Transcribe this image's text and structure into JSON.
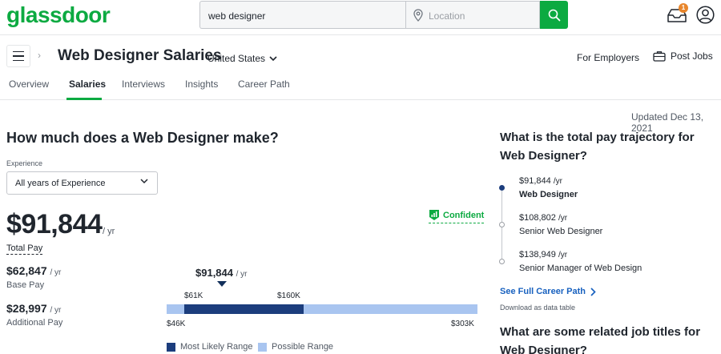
{
  "header": {
    "logo": "glassdoor",
    "search_value": "web designer",
    "location_placeholder": "Location",
    "notification_count": "1",
    "colors": {
      "brand": "#0caa41",
      "badge": "#e8862c"
    }
  },
  "subheader": {
    "title": "Web Designer Salaries",
    "country": "United States",
    "for_employers": "For Employers",
    "post_jobs": "Post Jobs"
  },
  "tabs": [
    {
      "label": "Overview"
    },
    {
      "label": "Salaries"
    },
    {
      "label": "Interviews"
    },
    {
      "label": "Insights"
    },
    {
      "label": "Career Path"
    }
  ],
  "active_tab": "Salaries",
  "updated": "Updated Dec 13, 2021",
  "main": {
    "heading": "How much does a Web Designer make?",
    "experience_label": "Experience",
    "experience_value": "All years of Experience",
    "total_pay": {
      "value": "$91,844",
      "unit": "/ yr",
      "label": "Total Pay"
    },
    "confidence": "Confident",
    "base_pay": {
      "value": "$62,847",
      "unit": "/ yr",
      "label": "Base Pay"
    },
    "additional_pay": {
      "value": "$28,997",
      "unit": "/ yr",
      "label": "Additional Pay"
    },
    "range": {
      "median_label": "$91,844",
      "median_unit": "/ yr",
      "likely_low_label": "$61K",
      "likely_high_label": "$160K",
      "min_label": "$46K",
      "max_label": "$303K",
      "legend_likely": "Most Likely Range",
      "legend_possible": "Possible Range",
      "min": 46,
      "likely_low": 61,
      "median": 91.844,
      "likely_high": 160,
      "max": 303,
      "colors": {
        "likely": "#1c3d7d",
        "possible": "#a9c5f0"
      }
    }
  },
  "side": {
    "trajectory_heading": "What is the total pay trajectory for Web Designer?",
    "trajectory": [
      {
        "salary": "$91,844",
        "unit": "/yr",
        "title": "Web Designer"
      },
      {
        "salary": "$108,802",
        "unit": "/yr",
        "title": "Senior Web Designer"
      },
      {
        "salary": "$138,949",
        "unit": "/yr",
        "title": "Senior Manager of Web Design"
      }
    ],
    "career_link": "See Full Career Path",
    "download": "Download as data table",
    "related_heading": "What are some related job titles for Web Designer?"
  }
}
